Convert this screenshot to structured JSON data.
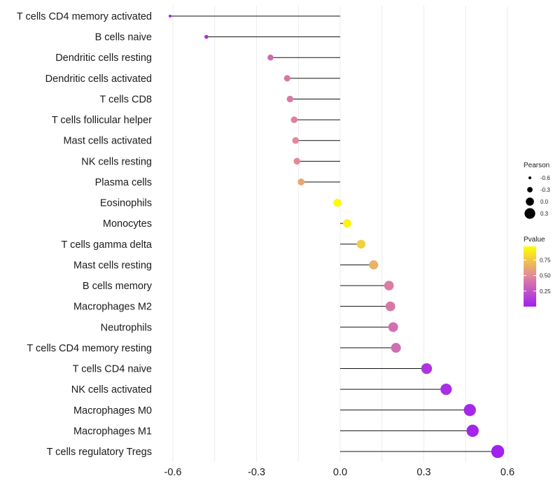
{
  "chart_data": {
    "type": "lollipop",
    "title": "",
    "xlabel": "",
    "ylabel": "",
    "xlim": [
      -0.63,
      0.61
    ],
    "x_ticks": [
      -0.6,
      -0.3,
      0.0,
      0.3,
      0.6
    ],
    "x_tick_labels": [
      "-0.6",
      "-0.3",
      "0.0",
      "0.3",
      "0.6"
    ],
    "grid": true,
    "categories": [
      "T cells CD4 memory activated",
      "B cells naive",
      "Dendritic cells resting",
      "Dendritic cells activated",
      "T cells CD8",
      "T cells follicular helper",
      "Mast cells activated",
      "NK cells resting",
      "Plasma cells",
      "Eosinophils",
      "Monocytes",
      "T cells gamma delta",
      "Mast cells resting",
      "B cells memory",
      "Macrophages M2",
      "Neutrophils",
      "T cells CD4 memory resting",
      "T cells CD4 naive",
      "NK cells activated",
      "Macrophages M0",
      "Macrophages M1",
      "T cells regulatory  Tregs"
    ],
    "values": [
      -0.61,
      -0.48,
      -0.25,
      -0.19,
      -0.18,
      -0.165,
      -0.16,
      -0.155,
      -0.14,
      -0.01,
      0.025,
      0.075,
      0.12,
      0.175,
      0.18,
      0.19,
      0.2,
      0.31,
      0.38,
      0.465,
      0.475,
      0.565
    ],
    "pvalues": [
      0.01,
      0.06,
      0.35,
      0.42,
      0.43,
      0.47,
      0.5,
      0.51,
      0.62,
      0.96,
      0.92,
      0.78,
      0.66,
      0.44,
      0.42,
      0.38,
      0.37,
      0.1,
      0.07,
      0.04,
      0.03,
      0.01
    ],
    "size_legend": {
      "title": "Pearson",
      "labels": [
        "-0.6",
        "-0.3",
        "0.0",
        "0.3"
      ],
      "values": [
        -0.6,
        -0.3,
        0.0,
        0.3
      ]
    },
    "color_legend": {
      "title": "Pvalue",
      "labels": [
        "0.75",
        "0.50",
        "0.25"
      ],
      "values": [
        0.75,
        0.5,
        0.25
      ],
      "range": [
        0.0,
        0.97
      ],
      "low_color": "#a020f0",
      "mid_color": "#e0859d",
      "high_color": "#ffff00"
    }
  }
}
